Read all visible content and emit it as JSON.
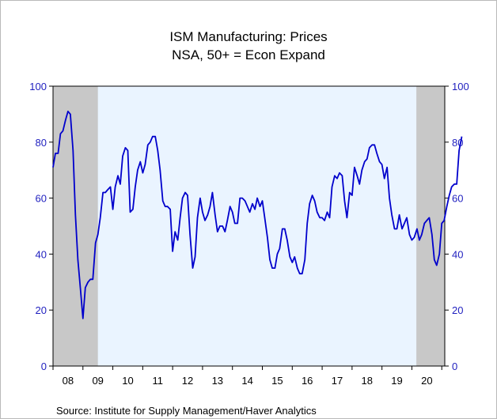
{
  "chart_data": {
    "type": "line",
    "title": "ISM Manufacturing: Prices",
    "subtitle": "NSA, 50+ = Econ Expand",
    "source": "Source:   Institute for Supply Management/Haver Analytics",
    "ylim": [
      0,
      100
    ],
    "y_ticks": [
      "0",
      "20",
      "40",
      "60",
      "80",
      "100"
    ],
    "y_tick_values": [
      0,
      20,
      40,
      60,
      80,
      100
    ],
    "x_ticks": [
      "08",
      "09",
      "10",
      "11",
      "12",
      "13",
      "14",
      "15",
      "16",
      "17",
      "18",
      "19",
      "20"
    ],
    "x_range": [
      2008.0,
      2021.1
    ],
    "grid": false,
    "recessions": [
      [
        2008.0,
        2009.5
      ],
      [
        2020.15,
        2021.1
      ]
    ],
    "recession_color": "#c8c8c8",
    "plot_background": "#eaf4ff",
    "line_color": "#0000cc",
    "series": [
      {
        "values": [
          [
            2008.0,
            71
          ],
          [
            2008.08,
            76
          ],
          [
            2008.17,
            76
          ],
          [
            2008.25,
            83
          ],
          [
            2008.33,
            84
          ],
          [
            2008.42,
            88
          ],
          [
            2008.5,
            91
          ],
          [
            2008.58,
            90
          ],
          [
            2008.67,
            77
          ],
          [
            2008.75,
            54
          ],
          [
            2008.83,
            38
          ],
          [
            2008.92,
            27
          ],
          [
            2009.0,
            17
          ],
          [
            2009.08,
            28
          ],
          [
            2009.17,
            30
          ],
          [
            2009.25,
            31
          ],
          [
            2009.33,
            31
          ],
          [
            2009.42,
            44
          ],
          [
            2009.5,
            47
          ],
          [
            2009.58,
            53
          ],
          [
            2009.67,
            62
          ],
          [
            2009.75,
            62
          ],
          [
            2009.83,
            63
          ],
          [
            2009.92,
            64
          ],
          [
            2010.0,
            56
          ],
          [
            2010.08,
            64
          ],
          [
            2010.17,
            68
          ],
          [
            2010.25,
            65
          ],
          [
            2010.33,
            75
          ],
          [
            2010.42,
            78
          ],
          [
            2010.5,
            77
          ],
          [
            2010.58,
            55
          ],
          [
            2010.67,
            56
          ],
          [
            2010.75,
            64
          ],
          [
            2010.83,
            70
          ],
          [
            2010.92,
            73
          ],
          [
            2011.0,
            69
          ],
          [
            2011.08,
            72
          ],
          [
            2011.17,
            79
          ],
          [
            2011.25,
            80
          ],
          [
            2011.33,
            82
          ],
          [
            2011.42,
            82
          ],
          [
            2011.5,
            77
          ],
          [
            2011.58,
            70
          ],
          [
            2011.67,
            59
          ],
          [
            2011.75,
            57
          ],
          [
            2011.83,
            57
          ],
          [
            2011.92,
            56
          ],
          [
            2012.0,
            41
          ],
          [
            2012.08,
            48
          ],
          [
            2012.17,
            45
          ],
          [
            2012.25,
            53
          ],
          [
            2012.33,
            60
          ],
          [
            2012.42,
            62
          ],
          [
            2012.5,
            61
          ],
          [
            2012.58,
            47
          ],
          [
            2012.67,
            35
          ],
          [
            2012.75,
            39
          ],
          [
            2012.83,
            53
          ],
          [
            2012.92,
            60
          ],
          [
            2013.0,
            55
          ],
          [
            2013.08,
            52
          ],
          [
            2013.17,
            54
          ],
          [
            2013.25,
            57
          ],
          [
            2013.33,
            62
          ],
          [
            2013.42,
            54
          ],
          [
            2013.5,
            48
          ],
          [
            2013.58,
            50
          ],
          [
            2013.67,
            50
          ],
          [
            2013.75,
            48
          ],
          [
            2013.83,
            52
          ],
          [
            2013.92,
            57
          ],
          [
            2014.0,
            55
          ],
          [
            2014.08,
            51
          ],
          [
            2014.17,
            51
          ],
          [
            2014.25,
            60
          ],
          [
            2014.33,
            60
          ],
          [
            2014.42,
            59
          ],
          [
            2014.5,
            57
          ],
          [
            2014.58,
            55
          ],
          [
            2014.67,
            58
          ],
          [
            2014.75,
            56
          ],
          [
            2014.83,
            60
          ],
          [
            2014.92,
            57
          ],
          [
            2015.0,
            59
          ],
          [
            2015.08,
            53
          ],
          [
            2015.17,
            46
          ],
          [
            2015.25,
            38
          ],
          [
            2015.33,
            35
          ],
          [
            2015.42,
            35
          ],
          [
            2015.5,
            40
          ],
          [
            2015.58,
            42
          ],
          [
            2015.67,
            49
          ],
          [
            2015.75,
            49
          ],
          [
            2015.83,
            45
          ],
          [
            2015.92,
            39
          ],
          [
            2016.0,
            37
          ],
          [
            2016.08,
            39
          ],
          [
            2016.17,
            35
          ],
          [
            2016.25,
            33
          ],
          [
            2016.33,
            33
          ],
          [
            2016.42,
            38
          ],
          [
            2016.5,
            51
          ],
          [
            2016.58,
            58
          ],
          [
            2016.67,
            61
          ],
          [
            2016.75,
            59
          ],
          [
            2016.83,
            55
          ],
          [
            2016.92,
            53
          ],
          [
            2017.0,
            53
          ],
          [
            2017.08,
            52
          ],
          [
            2017.17,
            55
          ],
          [
            2017.25,
            53
          ],
          [
            2017.33,
            64
          ],
          [
            2017.42,
            68
          ],
          [
            2017.5,
            67
          ],
          [
            2017.58,
            69
          ],
          [
            2017.67,
            68
          ],
          [
            2017.75,
            59
          ],
          [
            2017.83,
            53
          ],
          [
            2017.92,
            62
          ],
          [
            2018.0,
            61
          ],
          [
            2018.08,
            71
          ],
          [
            2018.17,
            68
          ],
          [
            2018.25,
            65
          ],
          [
            2018.33,
            70
          ],
          [
            2018.42,
            73
          ],
          [
            2018.5,
            74
          ],
          [
            2018.58,
            78
          ],
          [
            2018.67,
            79
          ],
          [
            2018.75,
            79
          ],
          [
            2018.83,
            76
          ],
          [
            2018.92,
            73
          ],
          [
            2019.0,
            72
          ],
          [
            2019.08,
            67
          ],
          [
            2019.17,
            71
          ],
          [
            2019.25,
            60
          ],
          [
            2019.33,
            54
          ],
          [
            2019.42,
            49
          ],
          [
            2019.5,
            49
          ],
          [
            2019.58,
            54
          ],
          [
            2019.67,
            49
          ],
          [
            2019.75,
            51
          ],
          [
            2019.83,
            53
          ],
          [
            2019.92,
            47
          ],
          [
            2020.0,
            45
          ],
          [
            2020.08,
            46
          ],
          [
            2020.17,
            49
          ],
          [
            2020.25,
            45
          ],
          [
            2020.33,
            47
          ],
          [
            2020.42,
            51
          ],
          [
            2020.5,
            52
          ],
          [
            2020.58,
            53
          ],
          [
            2020.67,
            47
          ],
          [
            2020.75,
            38
          ],
          [
            2020.83,
            36
          ],
          [
            2020.92,
            40
          ],
          [
            2021.0,
            51
          ],
          [
            2021.08,
            52
          ],
          [
            2021.17,
            57
          ],
          [
            2021.25,
            61
          ],
          [
            2021.33,
            64
          ],
          [
            2021.42,
            65
          ],
          [
            2021.5,
            65
          ],
          [
            2021.58,
            77
          ],
          [
            2021.67,
            82
          ]
        ]
      }
    ]
  }
}
